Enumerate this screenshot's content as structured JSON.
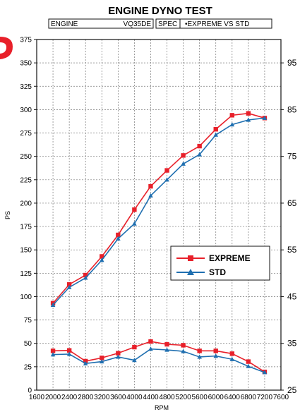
{
  "chart_data": {
    "type": "line",
    "title": "ENGINE DYNO TEST",
    "header": {
      "engine_label": "ENGINE",
      "engine_value": "VQ35DE",
      "spec_label": "SPEC",
      "spec_value": "•EXPREME VS STD"
    },
    "xlabel": "RPM",
    "ylabel": "PS",
    "xlim": [
      1600,
      7600
    ],
    "ylim_left": [
      0,
      375
    ],
    "ylim_right": [
      25,
      100
    ],
    "x_ticks": [
      "1600",
      "2000",
      "2400",
      "2800",
      "3200",
      "3600",
      "4000",
      "4400",
      "4800",
      "5200",
      "5600",
      "6000",
      "6400",
      "6800",
      "7200",
      "7600"
    ],
    "y_left_ticks": [
      "0",
      "25",
      "50",
      "75",
      "100",
      "125",
      "150",
      "175",
      "200",
      "225",
      "250",
      "275",
      "300",
      "325",
      "350",
      "375"
    ],
    "y_right_ticks": [
      "25",
      "35",
      "45",
      "55",
      "65",
      "75",
      "85",
      "95"
    ],
    "grid": true,
    "legend_position": "center-right",
    "x": [
      2000,
      2400,
      2800,
      3200,
      3600,
      4000,
      4400,
      4800,
      5200,
      5600,
      6000,
      6400,
      6800,
      7200
    ],
    "series": [
      {
        "name": "EXPREME",
        "color": "#e8202a",
        "marker": "square",
        "power_ps": [
          93,
          113,
          123,
          143,
          166,
          193,
          218,
          235,
          251,
          261,
          279,
          294,
          296,
          291
        ],
        "torque": [
          42,
          42.5,
          31,
          34.5,
          39.5,
          46,
          52,
          49,
          48,
          42,
          42,
          39,
          30.5,
          19.5
        ]
      },
      {
        "name": "STD",
        "color": "#1f6fb0",
        "marker": "triangle",
        "power_ps": [
          91,
          110,
          120,
          139,
          162,
          178,
          208,
          225,
          242,
          252,
          273,
          284,
          289,
          291
        ],
        "torque": [
          38,
          38.5,
          28.5,
          30.5,
          35.5,
          32,
          44,
          43,
          41.5,
          35.5,
          36.5,
          33,
          25.5,
          19
        ]
      }
    ]
  }
}
